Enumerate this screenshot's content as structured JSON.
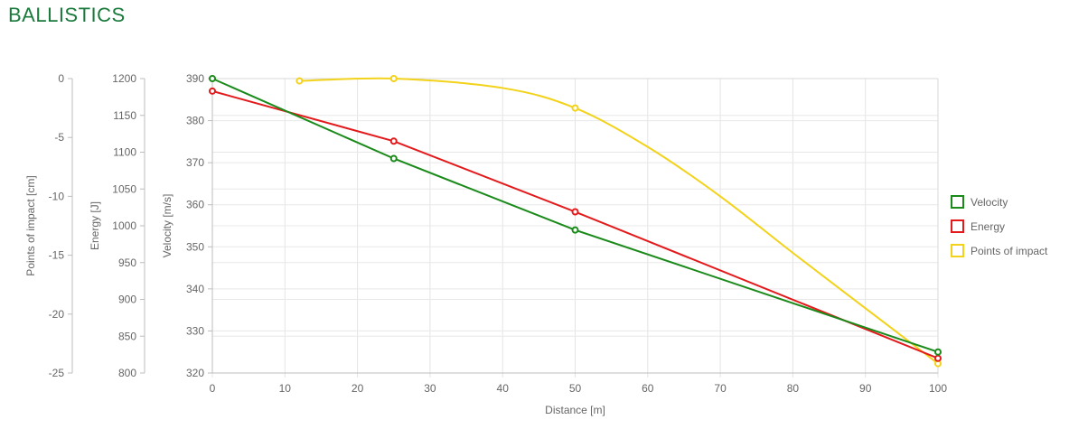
{
  "page": {
    "title": "BALLISTICS"
  },
  "chart_data": {
    "type": "line",
    "x_axis": {
      "label": "Distance [m]",
      "min": 0,
      "max": 100,
      "ticks": [
        0,
        10,
        20,
        30,
        40,
        50,
        60,
        70,
        80,
        90,
        100
      ]
    },
    "y_axes": [
      {
        "id": "impact",
        "label": "Points of impact [cm]",
        "min": -25,
        "max": 0,
        "ticks": [
          0,
          -5,
          -10,
          -15,
          -20,
          -25
        ]
      },
      {
        "id": "energy",
        "label": "Energy [J]",
        "min": 800,
        "max": 1200,
        "ticks": [
          1200,
          1150,
          1100,
          1050,
          1000,
          950,
          900,
          850,
          800
        ]
      },
      {
        "id": "velocity",
        "label": "Velocity [m/s]",
        "min": 320,
        "max": 390,
        "ticks": [
          390,
          380,
          370,
          360,
          350,
          340,
          330,
          320
        ]
      }
    ],
    "grid": true,
    "legend_position": "right",
    "series": [
      {
        "name": "Velocity",
        "axis": "velocity",
        "color": "#1a8a1a",
        "smooth": false,
        "points": [
          [
            0,
            390
          ],
          [
            25,
            371
          ],
          [
            50,
            354
          ],
          [
            100,
            325
          ]
        ]
      },
      {
        "name": "Energy",
        "axis": "energy",
        "color": "#e31a1c",
        "smooth": false,
        "points": [
          [
            0,
            1183
          ],
          [
            25,
            1115
          ],
          [
            50,
            1019
          ],
          [
            100,
            820
          ]
        ]
      },
      {
        "name": "Points of impact",
        "axis": "impact",
        "color": "#f2d21a",
        "smooth": true,
        "points": [
          [
            12,
            -0.2
          ],
          [
            25,
            0
          ],
          [
            50,
            -2.5
          ],
          [
            100,
            -24.2
          ]
        ],
        "curve": [
          [
            12,
            -0.2
          ],
          [
            25,
            0
          ],
          [
            40,
            -0.8
          ],
          [
            50,
            -2.5
          ],
          [
            60,
            -5.8
          ],
          [
            70,
            -10
          ],
          [
            80,
            -14.8
          ],
          [
            90,
            -19.5
          ],
          [
            100,
            -24.2
          ]
        ]
      }
    ]
  }
}
